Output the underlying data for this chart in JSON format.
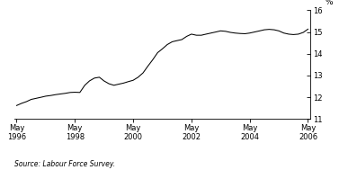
{
  "title": "",
  "ylabel": "%",
  "source": "Source: Labour Force Survey.",
  "xlim_start": 1996.25,
  "xlim_end": 2006.42,
  "ylim": [
    11,
    16
  ],
  "yticks": [
    11,
    12,
    13,
    14,
    15,
    16
  ],
  "xtick_positions": [
    1996.33,
    1998.33,
    2000.33,
    2002.33,
    2004.33,
    2006.33
  ],
  "xtick_labels": [
    "May\n1996",
    "May\n1998",
    "May\n2000",
    "May\n2002",
    "May\n2004",
    "May\n2006"
  ],
  "line_color": "#000000",
  "background_color": "#ffffff",
  "data_x": [
    1996.33,
    1996.5,
    1996.67,
    1996.83,
    1997.0,
    1997.17,
    1997.33,
    1997.5,
    1997.67,
    1997.83,
    1998.0,
    1998.17,
    1998.33,
    1998.5,
    1998.67,
    1998.83,
    1999.0,
    1999.17,
    1999.33,
    1999.5,
    1999.67,
    1999.83,
    2000.0,
    2000.17,
    2000.33,
    2000.5,
    2000.67,
    2000.83,
    2001.0,
    2001.17,
    2001.33,
    2001.5,
    2001.67,
    2001.83,
    2002.0,
    2002.17,
    2002.33,
    2002.5,
    2002.67,
    2002.83,
    2003.0,
    2003.17,
    2003.33,
    2003.5,
    2003.67,
    2003.83,
    2004.0,
    2004.17,
    2004.33,
    2004.5,
    2004.67,
    2004.83,
    2005.0,
    2005.17,
    2005.33,
    2005.5,
    2005.67,
    2005.83,
    2006.0,
    2006.17,
    2006.33
  ],
  "data_y": [
    11.62,
    11.72,
    11.8,
    11.9,
    11.95,
    12.0,
    12.05,
    12.08,
    12.12,
    12.15,
    12.18,
    12.22,
    12.23,
    12.22,
    12.55,
    12.75,
    12.88,
    12.92,
    12.75,
    12.62,
    12.55,
    12.6,
    12.65,
    12.72,
    12.78,
    12.92,
    13.12,
    13.42,
    13.72,
    14.05,
    14.22,
    14.42,
    14.55,
    14.6,
    14.65,
    14.8,
    14.9,
    14.85,
    14.85,
    14.9,
    14.95,
    15.0,
    15.05,
    15.03,
    14.98,
    14.95,
    14.93,
    14.92,
    14.95,
    15.0,
    15.05,
    15.1,
    15.12,
    15.1,
    15.05,
    14.95,
    14.9,
    14.88,
    14.9,
    14.98,
    15.13
  ]
}
